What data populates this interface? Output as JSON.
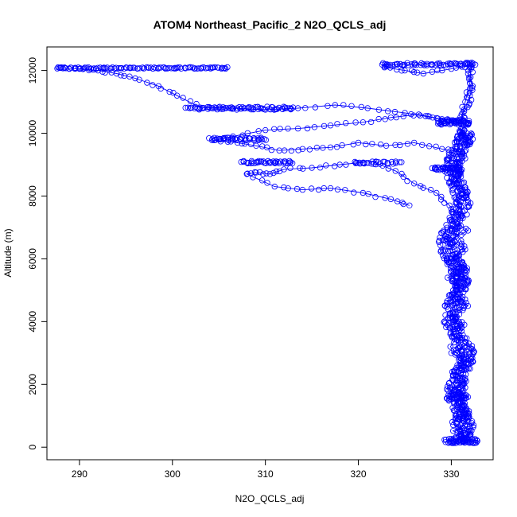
{
  "chart_data": {
    "type": "scatter",
    "title": "ATOM4 Northeast_Pacific_2 N2O_QCLS_adj",
    "xlabel": "N2O_QCLS_adj",
    "ylabel": "Altitude (m)",
    "xlim": [
      286.5,
      334.5
    ],
    "ylim": [
      -400,
      12750
    ],
    "x_ticks": [
      290,
      300,
      310,
      320,
      330
    ],
    "y_ticks": [
      0,
      2000,
      4000,
      6000,
      8000,
      10000,
      12000
    ],
    "marker": "open-circle",
    "connected": true,
    "colors": {
      "series": "#0000ff",
      "frame": "#000000"
    },
    "series": [
      {
        "path": [
          [
            331.0,
            150
          ],
          [
            331.6,
            300
          ],
          [
            330.2,
            520
          ],
          [
            332.4,
            700
          ],
          [
            330.8,
            900
          ],
          [
            331.9,
            1150
          ],
          [
            330.3,
            1400
          ],
          [
            331.8,
            1600
          ],
          [
            330.4,
            1850
          ],
          [
            331.6,
            2100
          ],
          [
            330.1,
            2400
          ],
          [
            331.7,
            2700
          ],
          [
            330.0,
            3000
          ],
          [
            331.9,
            3300
          ],
          [
            329.9,
            3600
          ],
          [
            331.4,
            3900
          ],
          [
            329.8,
            4200
          ],
          [
            331.8,
            4500
          ],
          [
            330.0,
            4800
          ],
          [
            331.3,
            5100
          ],
          [
            329.6,
            5400
          ],
          [
            331.7,
            5700
          ],
          [
            330.1,
            6000
          ],
          [
            331.5,
            6300
          ],
          [
            329.9,
            6600
          ],
          [
            331.8,
            6900
          ],
          [
            330.3,
            7200
          ],
          [
            331.2,
            7500
          ],
          [
            330.6,
            7800
          ],
          [
            331.6,
            8100
          ],
          [
            330.4,
            8400
          ],
          [
            331.0,
            8700
          ],
          [
            330.2,
            8900
          ],
          [
            331.5,
            9200
          ],
          [
            330.6,
            9500
          ],
          [
            331.8,
            9800
          ],
          [
            331.0,
            10050
          ],
          [
            331.6,
            10300
          ],
          [
            331.1,
            10600
          ],
          [
            331.9,
            10900
          ],
          [
            332.0,
            11200
          ],
          [
            332.3,
            11500
          ],
          [
            331.8,
            11900
          ],
          [
            332.2,
            12200
          ]
        ]
      },
      {
        "path": [
          [
            330.8,
            200
          ],
          [
            331.4,
            450
          ],
          [
            330.1,
            800
          ],
          [
            331.2,
            1100
          ],
          [
            330.6,
            1500
          ],
          [
            331.5,
            1900
          ],
          [
            330.2,
            2300
          ],
          [
            331.3,
            2800
          ],
          [
            329.9,
            3200
          ],
          [
            331.1,
            3700
          ],
          [
            330.4,
            4100
          ],
          [
            331.6,
            4600
          ],
          [
            330.2,
            5000
          ],
          [
            331.0,
            5500
          ],
          [
            329.7,
            5900
          ],
          [
            331.4,
            6400
          ],
          [
            330.5,
            6800
          ],
          [
            331.0,
            7300
          ],
          [
            329.8,
            7700
          ],
          [
            328.4,
            8100
          ],
          [
            326.0,
            8400
          ],
          [
            324.0,
            8800
          ],
          [
            321.5,
            9100
          ],
          [
            318.0,
            9000
          ],
          [
            315.0,
            8900
          ],
          [
            312.0,
            8850
          ],
          [
            310.5,
            8700
          ],
          [
            309.0,
            8750
          ],
          [
            308.0,
            8700
          ],
          [
            311.0,
            8300
          ],
          [
            314.0,
            8200
          ],
          [
            317.0,
            8250
          ],
          [
            320.5,
            8100
          ],
          [
            323.5,
            7900
          ],
          [
            325.5,
            7700
          ]
        ]
      },
      {
        "path": [
          [
            331.2,
            9400
          ],
          [
            329.0,
            9500
          ],
          [
            326.0,
            9700
          ],
          [
            323.0,
            9600
          ],
          [
            320.0,
            9700
          ],
          [
            317.0,
            9550
          ],
          [
            314.0,
            9500
          ],
          [
            311.5,
            9450
          ],
          [
            309.0,
            9600
          ],
          [
            307.0,
            9700
          ],
          [
            304.5,
            9780
          ],
          [
            306.5,
            9900
          ],
          [
            310.0,
            10100
          ],
          [
            313.5,
            10150
          ],
          [
            317.0,
            10250
          ],
          [
            320.5,
            10350
          ],
          [
            323.5,
            10500
          ],
          [
            326.5,
            10600
          ],
          [
            329.0,
            10450
          ],
          [
            331.2,
            10400
          ]
        ]
      },
      {
        "path": [
          [
            332.1,
            12150
          ],
          [
            330.0,
            12050
          ],
          [
            327.0,
            11900
          ],
          [
            325.0,
            12000
          ],
          [
            322.8,
            12100
          ],
          [
            323.0,
            12180
          ],
          [
            327.0,
            12200
          ],
          [
            330.5,
            12220
          ],
          [
            332.2,
            12250
          ],
          [
            332.0,
            11600
          ],
          [
            331.5,
            11000
          ],
          [
            331.0,
            10350
          ],
          [
            328.0,
            10500
          ],
          [
            325.0,
            10650
          ],
          [
            321.0,
            10800
          ],
          [
            317.5,
            10900
          ],
          [
            313.5,
            10800
          ],
          [
            310.0,
            10750
          ],
          [
            306.5,
            10800
          ],
          [
            303.0,
            10820
          ],
          [
            300.5,
            11200
          ],
          [
            298.5,
            11500
          ],
          [
            296.0,
            11750
          ],
          [
            294.0,
            11900
          ],
          [
            292.0,
            12000
          ],
          [
            290.0,
            12050
          ],
          [
            288.0,
            12080
          ]
        ]
      }
    ],
    "clusters": [
      {
        "x_range": [
          287.5,
          306.0
        ],
        "y": 12080,
        "y_jitter": 25,
        "count": 110
      },
      {
        "x_range": [
          301.5,
          313.0
        ],
        "y": 10800,
        "y_jitter": 50,
        "count": 70
      },
      {
        "x_range": [
          304.0,
          310.0
        ],
        "y": 9820,
        "y_jitter": 45,
        "count": 45
      },
      {
        "x_range": [
          307.5,
          313.0
        ],
        "y": 9080,
        "y_jitter": 40,
        "count": 40
      },
      {
        "x_range": [
          319.5,
          324.5
        ],
        "y": 9060,
        "y_jitter": 40,
        "count": 25
      },
      {
        "x_range": [
          322.5,
          332.5
        ],
        "y": 12200,
        "y_jitter": 40,
        "count": 45
      },
      {
        "x_range": [
          328.5,
          332.0
        ],
        "y": 10350,
        "y_jitter": 80,
        "count": 50
      },
      {
        "x_range": [
          328.0,
          331.0
        ],
        "y": 8880,
        "y_jitter": 50,
        "count": 35
      },
      {
        "x_range": [
          329.6,
          331.6
        ],
        "y": 1600,
        "y_jitter": 60,
        "count": 30
      },
      {
        "x_range": [
          329.4,
          332.8
        ],
        "y": 200,
        "y_jitter": 70,
        "count": 55
      }
    ]
  }
}
